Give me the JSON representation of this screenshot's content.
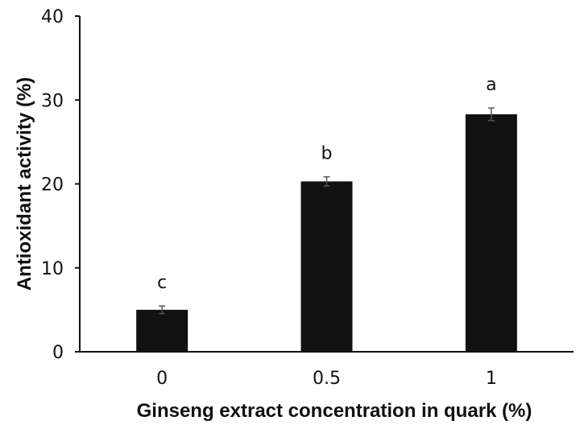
{
  "chart_data": {
    "type": "bar",
    "categories": [
      "0",
      "0.5",
      "1"
    ],
    "values": [
      5.0,
      20.3,
      28.3
    ],
    "error": [
      0.45,
      0.55,
      0.75
    ],
    "significance_letters": [
      "c",
      "b",
      "a"
    ],
    "title": "",
    "xlabel": "Ginseng extract concentration in quark (%)",
    "ylabel": "Antioxidant activity (%)",
    "ylim": [
      0,
      40
    ],
    "yticks": [
      0,
      10,
      20,
      30,
      40
    ],
    "grid": false,
    "legend": "none",
    "colors": {
      "bar": "#111111",
      "axis": "#111111",
      "error_bar": "#555555"
    }
  }
}
